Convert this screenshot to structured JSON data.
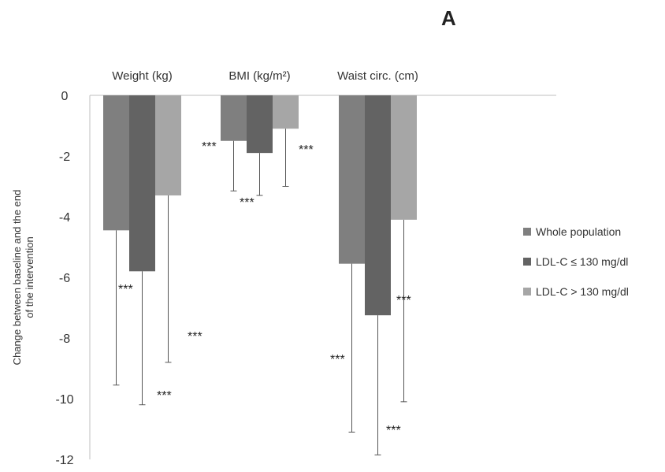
{
  "panel_label": "A",
  "chart_data": {
    "type": "bar",
    "ylabel": "Change between baseline and the end of the intervention",
    "ylabel_lines": [
      "Change between baseline and the end",
      "of the intervention"
    ],
    "ylim": [
      -12,
      0
    ],
    "yticks": [
      0,
      -2,
      -4,
      -6,
      -8,
      -10,
      -12
    ],
    "grid": false,
    "legend_position": "right",
    "categories": [
      "Weight (kg)",
      "BMI (kg/m²)",
      "Waist circ. (cm)"
    ],
    "series": [
      {
        "name": "Whole population",
        "color": "#7f7f7f",
        "values": [
          -4.45,
          -1.5,
          -5.55
        ],
        "error": [
          5.1,
          1.65,
          5.55
        ],
        "significance": [
          "***",
          "***",
          "***"
        ]
      },
      {
        "name": "LDL-C ≤ 130 mg/dl",
        "color": "#636363",
        "values": [
          -5.8,
          -1.9,
          -7.25
        ],
        "error": [
          4.4,
          1.4,
          4.6
        ],
        "significance": [
          "***",
          "***",
          "***"
        ]
      },
      {
        "name": "LDL-C > 130 mg/dl",
        "color": "#a6a6a6",
        "values": [
          -3.3,
          -1.1,
          -4.1
        ],
        "error": [
          5.5,
          1.9,
          6.0
        ],
        "significance": [
          "***",
          "***",
          "***"
        ]
      }
    ]
  }
}
